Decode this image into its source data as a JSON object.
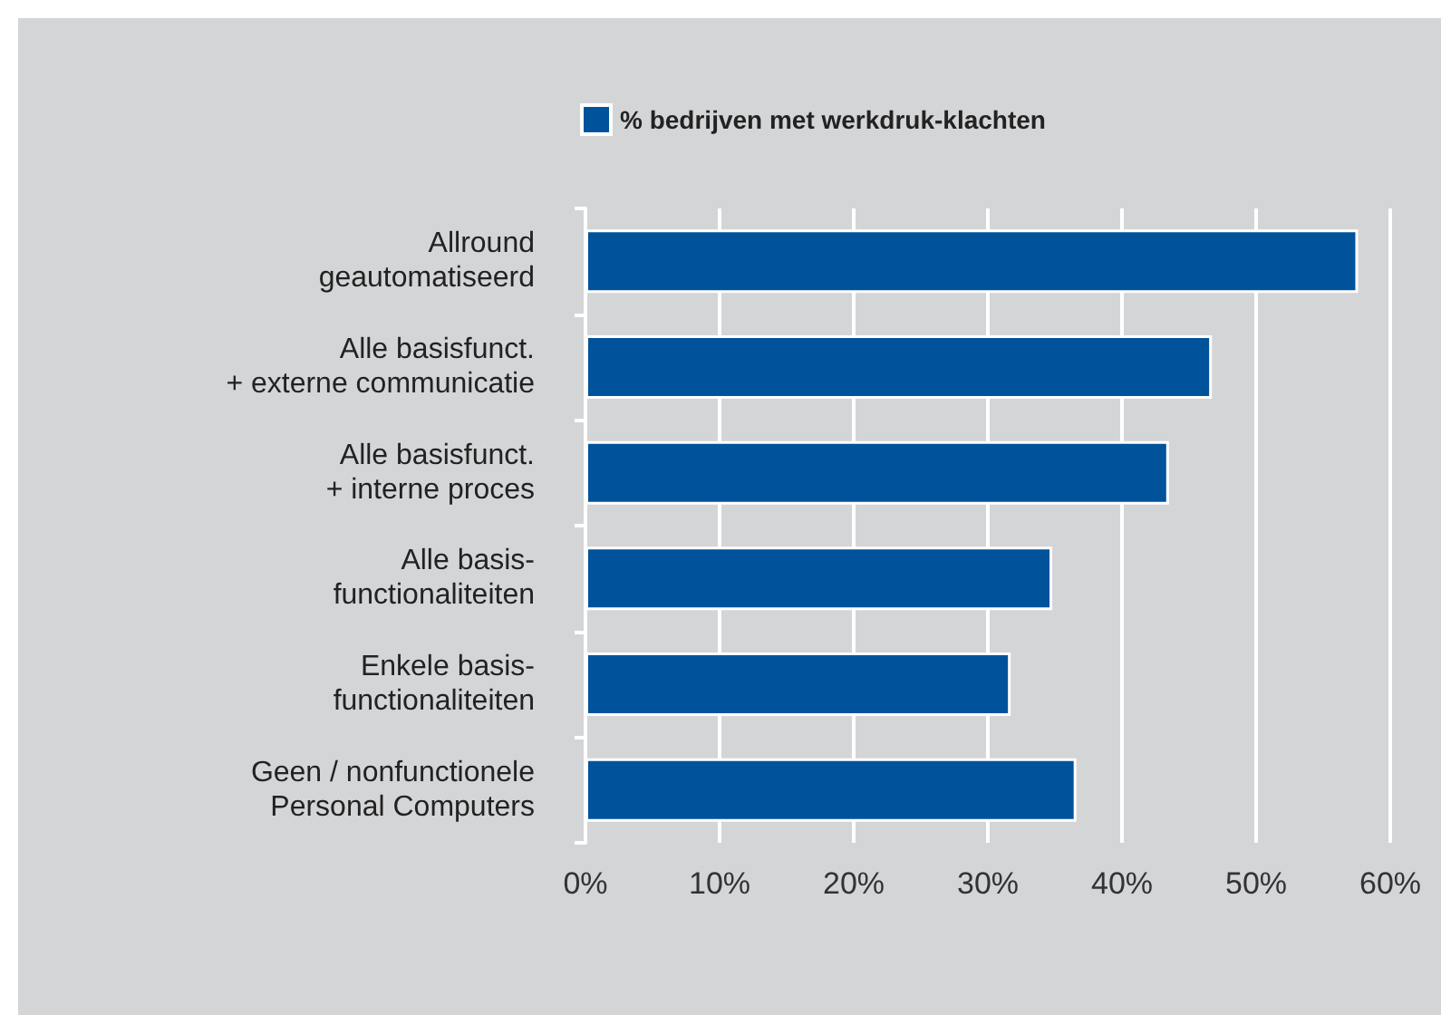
{
  "chart_data": {
    "type": "bar",
    "orientation": "horizontal",
    "categories": [
      "Allround\ngeautomatiseerd",
      "Alle basisfunct.\n+ externe communicatie",
      "Alle basisfunct.\n+ interne proces",
      "Alle basis-\nfunctionaliteiten",
      "Enkele basis-\nfunctionaliteiten",
      "Geen / nonfunctionele\nPersonal Computers"
    ],
    "series": [
      {
        "name": "% bedrijven met werkdruk-klachten",
        "color": "#00539b",
        "values": [
          57.6,
          46.7,
          43.5,
          34.8,
          31.7,
          36.6
        ]
      }
    ],
    "xlim": [
      0,
      60
    ],
    "xticks": [
      {
        "value": 0,
        "label": "0%"
      },
      {
        "value": 10,
        "label": "10%"
      },
      {
        "value": 20,
        "label": "20%"
      },
      {
        "value": 30,
        "label": "30%"
      },
      {
        "value": 40,
        "label": "40%"
      },
      {
        "value": 50,
        "label": "50%"
      },
      {
        "value": 60,
        "label": "60%"
      }
    ],
    "grid": "x",
    "legend": "top"
  }
}
